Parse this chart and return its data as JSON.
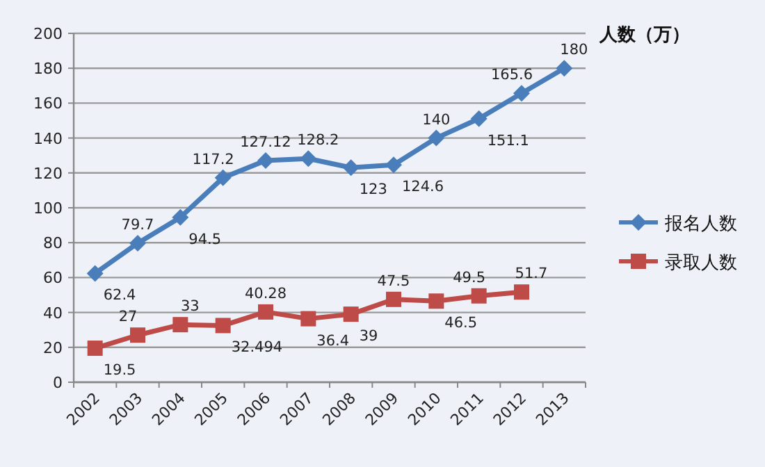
{
  "chart_data": {
    "type": "line",
    "ylabel": "人数（万）",
    "categories": [
      "2002",
      "2003",
      "2004",
      "2005",
      "2006",
      "2007",
      "2008",
      "2009",
      "2010",
      "2011",
      "2012",
      "2013"
    ],
    "series": [
      {
        "name": "报名人数",
        "color": "#4a7ebb",
        "marker": "diamond",
        "values": [
          62.4,
          79.7,
          94.5,
          117.2,
          127.12,
          128.2,
          123,
          124.6,
          140,
          151.1,
          165.6,
          180
        ]
      },
      {
        "name": "录取人数",
        "color": "#be4b48",
        "marker": "square",
        "values": [
          19.5,
          27,
          33,
          32.494,
          40.28,
          36.4,
          39,
          47.5,
          46.5,
          49.5,
          51.7,
          null
        ]
      }
    ],
    "ylim": [
      0,
      200
    ],
    "yticks": [
      0,
      20,
      40,
      60,
      80,
      100,
      120,
      140,
      160,
      180,
      200
    ],
    "grid": "y",
    "legend": "right",
    "data_labels": true
  }
}
